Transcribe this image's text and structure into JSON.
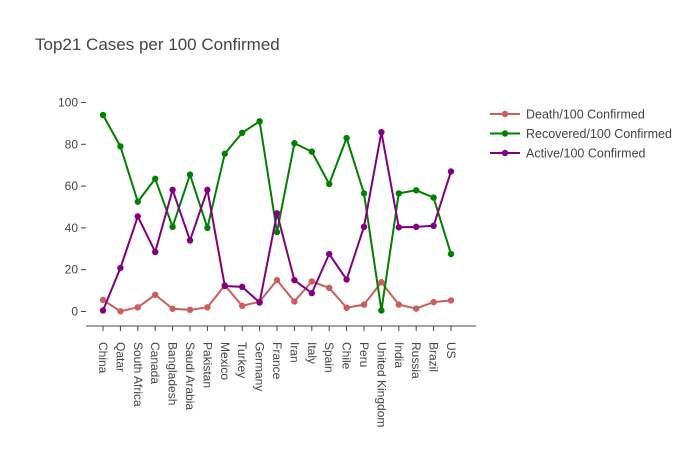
{
  "chart_data": {
    "type": "line",
    "title": "Top21 Cases per 100 Confirmed",
    "xlabel": "",
    "ylabel": "",
    "ylim": [
      -7,
      100
    ],
    "yticks": [
      0,
      20,
      40,
      60,
      80,
      100
    ],
    "grid": false,
    "legend_position": "top-right",
    "categories": [
      "China",
      "Qatar",
      "South Africa",
      "Canada",
      "Bangladesh",
      "Saudi Arabia",
      "Pakistan",
      "Mexico",
      "Turkey",
      "Germany",
      "France",
      "Iran",
      "Italy",
      "Spain",
      "Chile",
      "Peru",
      "United Kingdom",
      "India",
      "Russia",
      "Brazil",
      "US"
    ],
    "series": [
      {
        "name": "Death/100 Confirmed",
        "color": "#cd5c5c",
        "values": [
          5.5,
          0.1,
          2.0,
          8.0,
          1.3,
          0.8,
          2.0,
          12.5,
          2.7,
          4.7,
          15.0,
          4.8,
          14.4,
          11.3,
          1.8,
          3.3,
          14.0,
          3.3,
          1.4,
          4.5,
          5.3
        ]
      },
      {
        "name": "Recovered/100 Confirmed",
        "color": "#008000",
        "values": [
          94.0,
          79.0,
          52.5,
          63.5,
          40.5,
          65.5,
          40.0,
          75.5,
          85.5,
          91.0,
          38.0,
          80.5,
          76.5,
          61.0,
          83.0,
          56.5,
          0.5,
          56.5,
          58.0,
          54.5,
          27.5
        ]
      },
      {
        "name": "Active/100 Confirmed",
        "color": "#800080",
        "values": [
          0.5,
          20.8,
          45.5,
          28.5,
          58.2,
          34.0,
          58.2,
          12.2,
          11.8,
          4.3,
          47.0,
          15.0,
          8.8,
          27.5,
          15.3,
          40.5,
          85.8,
          40.3,
          40.5,
          41.0,
          67.0
        ]
      }
    ]
  }
}
